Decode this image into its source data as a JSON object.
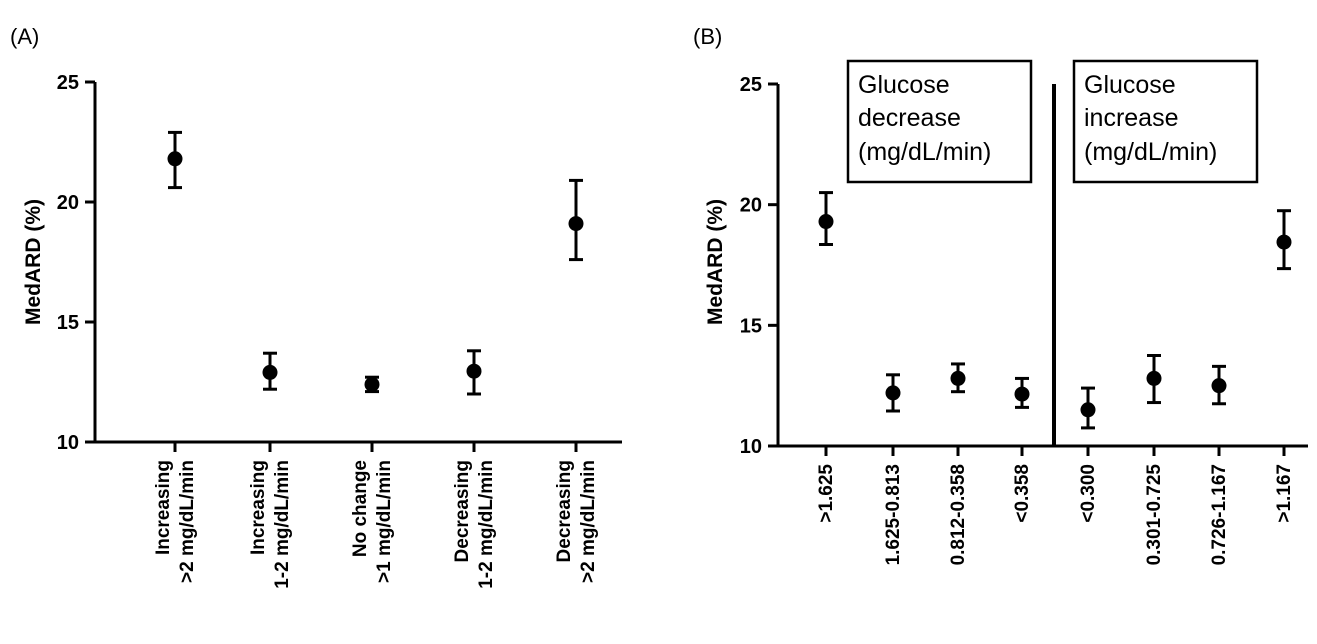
{
  "chart_data": [
    {
      "type": "scatter",
      "panel_label": "(A)",
      "title": "",
      "xlabel": "",
      "ylabel": "MedARD (%)",
      "ylim": [
        10,
        25
      ],
      "yticks": [
        "10",
        "15",
        "20",
        "25"
      ],
      "grid": false,
      "error_bars": true,
      "categories": [
        [
          "Increasing",
          ">2 mg/dL/min"
        ],
        [
          "Increasing",
          "1-2 mg/dL/min"
        ],
        [
          "No change",
          ">1 mg/dL/min"
        ],
        [
          "Decreasing",
          "1-2 mg/dL/min"
        ],
        [
          "Decreasing",
          ">2 mg/dL/min"
        ]
      ],
      "values": [
        21.8,
        12.9,
        12.4,
        12.95,
        19.1
      ],
      "lower": [
        20.6,
        12.2,
        12.1,
        12.0,
        17.6
      ],
      "upper": [
        22.9,
        13.7,
        12.7,
        13.8,
        20.9
      ]
    },
    {
      "type": "scatter",
      "panel_label": "(B)",
      "title": "",
      "xlabel": "",
      "ylabel": "MedARD (%)",
      "ylim": [
        10,
        25
      ],
      "yticks": [
        "10",
        "15",
        "20",
        "25"
      ],
      "grid": false,
      "error_bars": true,
      "annotations": [
        {
          "group": "decrease",
          "lines": [
            "Glucose",
            "decrease",
            "(mg/dL/min)"
          ]
        },
        {
          "group": "increase",
          "lines": [
            "Glucose",
            "increase",
            "(mg/dL/min)"
          ]
        }
      ],
      "categories": [
        ">1.625",
        "1.625-0.813",
        "0.812-0.358",
        "<0.358",
        "<0.300",
        "0.301-0.725",
        "0.726-1.167",
        ">1.167"
      ],
      "values": [
        19.3,
        12.2,
        12.8,
        12.15,
        11.5,
        12.8,
        12.5,
        18.45
      ],
      "lower": [
        18.35,
        11.45,
        12.25,
        11.6,
        10.75,
        11.8,
        11.75,
        17.35
      ],
      "upper": [
        20.5,
        12.95,
        13.4,
        12.8,
        12.4,
        13.75,
        13.3,
        19.75
      ]
    }
  ]
}
